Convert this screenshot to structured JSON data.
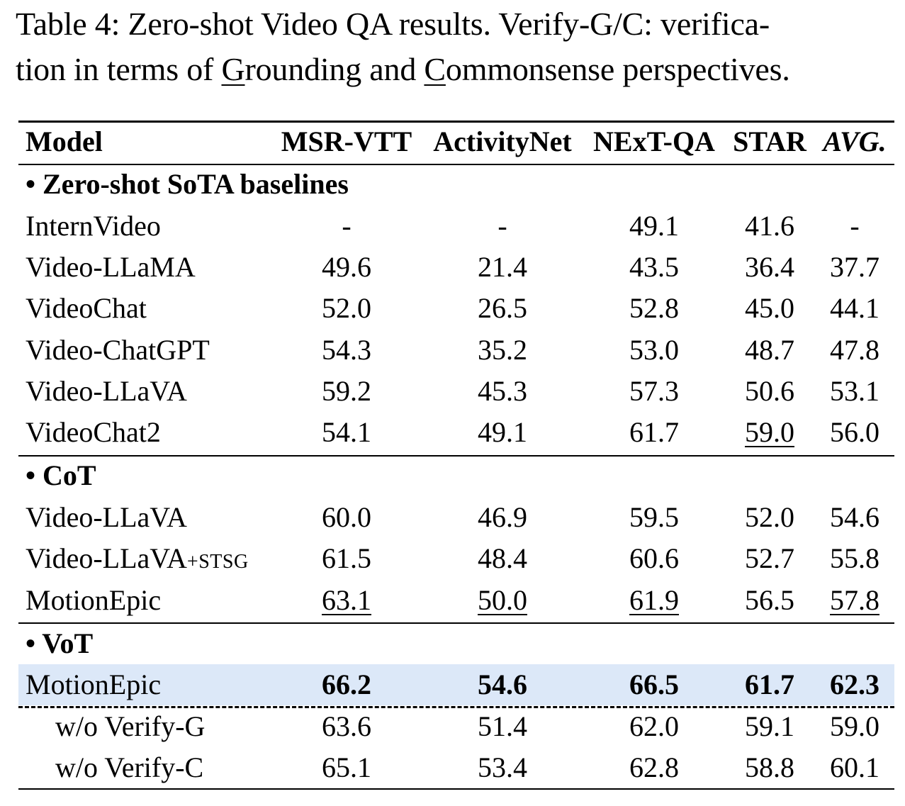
{
  "caption": {
    "line1": "Table 4:  Zero-shot Video QA results. Verify-G/C: verifica-",
    "line2_pre": "tion in terms of ",
    "line2_g": "G",
    "line2_mid": "rounding and ",
    "line2_c": "C",
    "line2_post": "ommonsense perspectives."
  },
  "header": {
    "model": "Model",
    "cols": [
      "MSR-VTT",
      "ActivityNet",
      "NExT-QA",
      "STAR",
      "AVG."
    ]
  },
  "sections": [
    {
      "title": "• Zero-shot SoTA baselines",
      "rows": [
        {
          "model": "InternVideo",
          "values": [
            "-",
            "-",
            "49.1",
            "41.6",
            "-"
          ]
        },
        {
          "model": "Video-LLaMA",
          "values": [
            "49.6",
            "21.4",
            "43.5",
            "36.4",
            "37.7"
          ]
        },
        {
          "model": "VideoChat",
          "values": [
            "52.0",
            "26.5",
            "52.8",
            "45.0",
            "44.1"
          ]
        },
        {
          "model": "Video-ChatGPT",
          "values": [
            "54.3",
            "35.2",
            "53.0",
            "48.7",
            "47.8"
          ]
        },
        {
          "model": "Video-LLaVA",
          "values": [
            "59.2",
            "45.3",
            "57.3",
            "50.6",
            "53.1"
          ]
        },
        {
          "model": "VideoChat2",
          "values": [
            "54.1",
            "49.1",
            "61.7",
            "59.0",
            "56.0"
          ]
        }
      ]
    },
    {
      "title": "• CoT",
      "rows": [
        {
          "model": "Video-LLaVA",
          "values": [
            "60.0",
            "46.9",
            "59.5",
            "52.0",
            "54.6"
          ]
        },
        {
          "model": "Video-LLaVA",
          "model_suffix": "+STSG",
          "values": [
            "61.5",
            "48.4",
            "60.6",
            "52.7",
            "55.8"
          ]
        },
        {
          "model": "MotionEpic",
          "values": [
            "63.1",
            "50.0",
            "61.9",
            "56.5",
            "57.8"
          ]
        }
      ]
    },
    {
      "title": "• VoT",
      "rows": [
        {
          "model": "MotionEpic",
          "values": [
            "66.2",
            "54.6",
            "66.5",
            "61.7",
            "62.3"
          ]
        },
        {
          "model": "w/o Verify-G",
          "values": [
            "63.6",
            "51.4",
            "62.0",
            "59.1",
            "59.0"
          ]
        },
        {
          "model": "w/o Verify-C",
          "values": [
            "65.1",
            "53.4",
            "62.8",
            "58.8",
            "60.1"
          ]
        }
      ]
    }
  ],
  "highlight_color": "#dce8f8"
}
